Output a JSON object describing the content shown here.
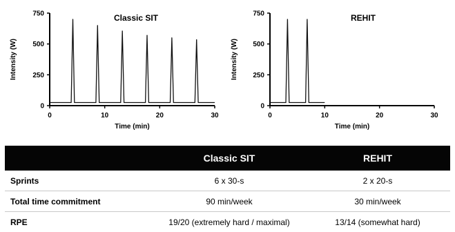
{
  "chart_data": [
    {
      "type": "line",
      "title": "Classic SIT",
      "xlabel": "Time (min)",
      "ylabel": "Intensity (W)",
      "xlim": [
        0,
        30
      ],
      "ylim": [
        0,
        750
      ],
      "xticks": [
        "0",
        "10",
        "20",
        "30"
      ],
      "yticks": [
        "0",
        "250",
        "500",
        "750"
      ],
      "baseline": 25,
      "peaks": [
        {
          "x": 4.2,
          "y": 700
        },
        {
          "x": 8.7,
          "y": 650
        },
        {
          "x": 13.2,
          "y": 605
        },
        {
          "x": 17.7,
          "y": 570
        },
        {
          "x": 22.2,
          "y": 550
        },
        {
          "x": 26.7,
          "y": 535
        }
      ],
      "x_end": 30
    },
    {
      "type": "line",
      "title": "REHIT",
      "xlabel": "Time (min)",
      "ylabel": "Intensity (W)",
      "xlim": [
        0,
        30
      ],
      "ylim": [
        0,
        750
      ],
      "xticks": [
        "0",
        "10",
        "20",
        "30"
      ],
      "yticks": [
        "0",
        "250",
        "500",
        "750"
      ],
      "baseline": 25,
      "peaks": [
        {
          "x": 3.2,
          "y": 700
        },
        {
          "x": 6.8,
          "y": 700
        }
      ],
      "x_end": 10
    }
  ],
  "table": {
    "headers": [
      "",
      "Classic SIT",
      "REHIT"
    ],
    "rows": [
      {
        "label": "Sprints",
        "sit": "6 x 30-s",
        "rehit": "2 x 20-s"
      },
      {
        "label": "Total time commitment",
        "sit": "90 min/week",
        "rehit": "30 min/week"
      },
      {
        "label": "RPE",
        "sit": "19/20 (extremely hard / maximal)",
        "rehit": "13/14 (somewhat hard)"
      }
    ]
  }
}
